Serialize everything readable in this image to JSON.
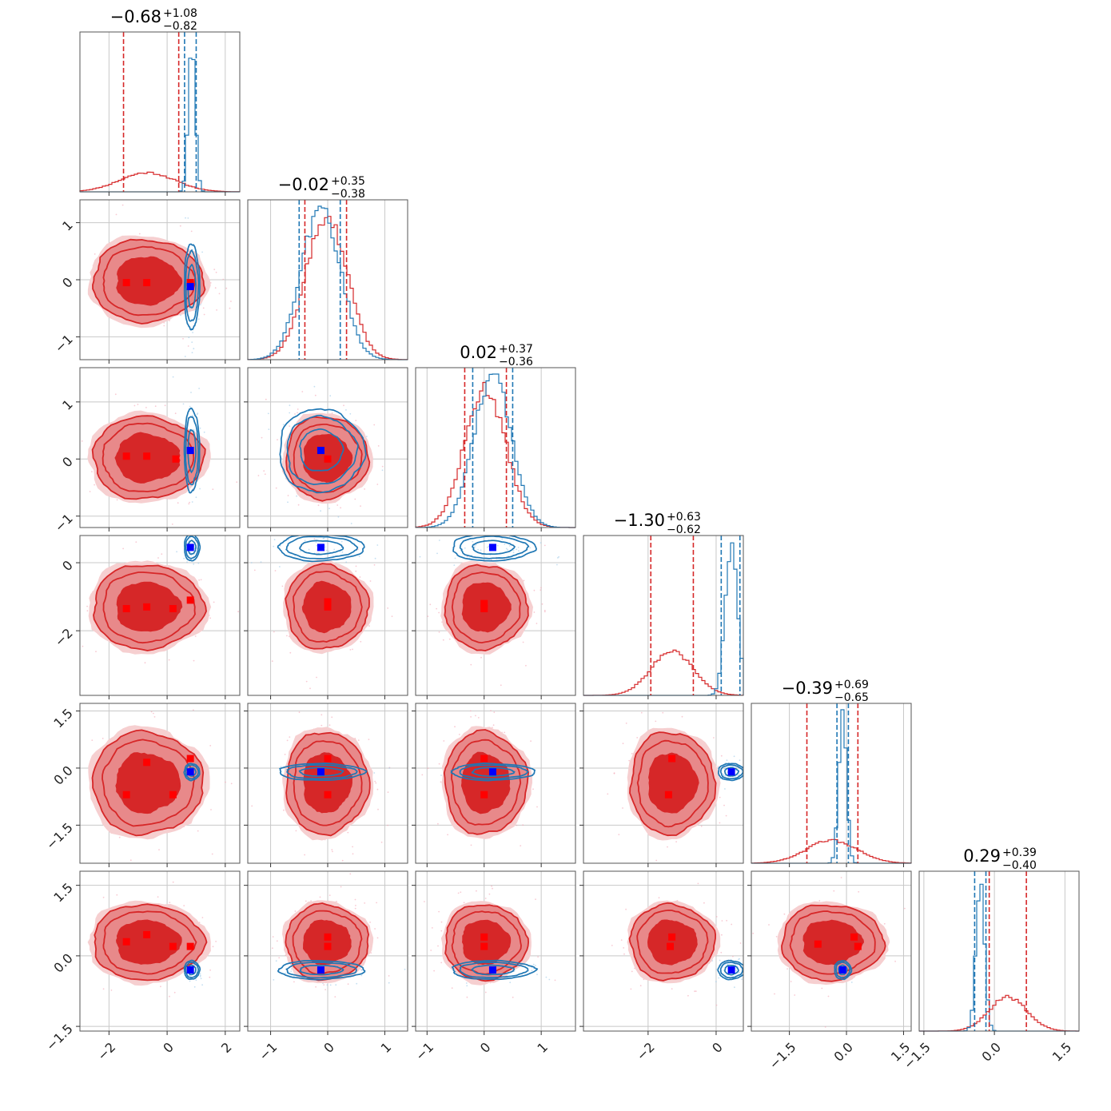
{
  "chart_data": {
    "type": "corner",
    "grid": true,
    "colors": {
      "red": "#d62728",
      "red_mid": "#e8898a",
      "red_light": "#f6cfd0",
      "blue": "#1f77b4",
      "marker_blue": "#0000ff",
      "marker_red": "#ff0000"
    },
    "params": [
      {
        "title": {
          "main": "−0.68",
          "sup": "+1.08",
          "sub": "−0.82"
        },
        "range": [
          -3.0,
          2.5
        ],
        "ticks": [
          -2,
          0,
          2
        ],
        "tick_labels": [
          "−2",
          "0",
          "2"
        ],
        "red": {
          "mean": -0.68,
          "std": 0.95,
          "q": [
            -1.5,
            0.4
          ]
        },
        "blue": {
          "mean": 0.85,
          "std": 0.12,
          "q": [
            0.6,
            1.0
          ]
        }
      },
      {
        "title": {
          "main": "−0.02",
          "sup": "+0.35",
          "sub": "−0.38"
        },
        "range": [
          -1.4,
          1.4
        ],
        "ticks": [
          -1,
          0,
          1
        ],
        "tick_labels": [
          "−1",
          "0",
          "1"
        ],
        "red": {
          "mean": -0.02,
          "std": 0.36,
          "q": [
            -0.4,
            0.33
          ]
        },
        "blue": {
          "mean": -0.12,
          "std": 0.34,
          "q": [
            -0.5,
            0.22
          ]
        }
      },
      {
        "title": {
          "main": "0.02",
          "sup": "+0.37",
          "sub": "−0.36"
        },
        "range": [
          -1.2,
          1.6
        ],
        "ticks": [
          -1,
          0,
          1
        ],
        "tick_labels": [
          "−1",
          "0",
          "1"
        ],
        "red": {
          "mean": 0.02,
          "std": 0.36,
          "q": [
            -0.34,
            0.39
          ]
        },
        "blue": {
          "mean": 0.15,
          "std": 0.33,
          "q": [
            -0.2,
            0.5
          ]
        }
      },
      {
        "title": {
          "main": "−1.30",
          "sup": "+0.63",
          "sub": "−0.62"
        },
        "range": [
          -3.9,
          0.8
        ],
        "ticks": [
          -2,
          0
        ],
        "tick_labels": [
          "−2",
          "0"
        ],
        "red": {
          "mean": -1.3,
          "std": 0.62,
          "q": [
            -1.92,
            -0.67
          ]
        },
        "blue": {
          "mean": 0.45,
          "std": 0.18,
          "q": [
            0.15,
            0.7
          ]
        }
      },
      {
        "title": {
          "main": "−0.39",
          "sup": "+0.69",
          "sub": "−0.65"
        },
        "range": [
          -2.5,
          1.7
        ],
        "ticks": [
          -1.5,
          0.0,
          1.5
        ],
        "tick_labels": [
          "−1.5",
          "0.0",
          "1.5"
        ],
        "red": {
          "mean": -0.39,
          "std": 0.67,
          "q": [
            -1.04,
            0.3
          ]
        },
        "blue": {
          "mean": -0.1,
          "std": 0.1,
          "q": [
            -0.25,
            0.05
          ]
        }
      },
      {
        "title": {
          "main": "0.29",
          "sup": "+0.39",
          "sub": "−0.40"
        },
        "range": [
          -1.6,
          1.8
        ],
        "ticks": [
          -1.5,
          0.0,
          1.5
        ],
        "tick_labels": [
          "−1.5",
          "0.0",
          "1.5"
        ],
        "red": {
          "mean": 0.29,
          "std": 0.4,
          "q": [
            -0.11,
            0.68
          ]
        },
        "blue": {
          "mean": -0.3,
          "std": 0.09,
          "q": [
            -0.42,
            -0.18
          ]
        }
      }
    ],
    "red_square_markers": [
      {
        "row": 1,
        "col": 0,
        "points": [
          [
            -1.4,
            -0.05
          ],
          [
            -0.7,
            -0.05
          ],
          [
            0.8,
            -0.05
          ]
        ]
      },
      {
        "row": 2,
        "col": 0,
        "points": [
          [
            -1.4,
            0.05
          ],
          [
            -0.7,
            0.05
          ],
          [
            0.3,
            0.0
          ]
        ]
      },
      {
        "row": 2,
        "col": 1,
        "points": [
          [
            0.0,
            0.0
          ]
        ]
      },
      {
        "row": 3,
        "col": 0,
        "points": [
          [
            -1.4,
            -1.35
          ],
          [
            -0.7,
            -1.3
          ],
          [
            0.2,
            -1.35
          ],
          [
            0.8,
            -1.1
          ]
        ]
      },
      {
        "row": 3,
        "col": 1,
        "points": [
          [
            0.0,
            -1.15
          ],
          [
            0.0,
            -1.3
          ]
        ]
      },
      {
        "row": 3,
        "col": 2,
        "points": [
          [
            0.0,
            -1.2
          ],
          [
            0.0,
            -1.35
          ]
        ]
      },
      {
        "row": 4,
        "col": 0,
        "points": [
          [
            -1.4,
            -0.7
          ],
          [
            -0.7,
            0.15
          ],
          [
            0.2,
            -0.7
          ],
          [
            0.8,
            0.25
          ]
        ]
      },
      {
        "row": 4,
        "col": 1,
        "points": [
          [
            0.0,
            0.25
          ],
          [
            0.0,
            -0.7
          ]
        ]
      },
      {
        "row": 4,
        "col": 2,
        "points": [
          [
            0.0,
            0.25
          ],
          [
            0.0,
            -0.7
          ]
        ]
      },
      {
        "row": 4,
        "col": 3,
        "points": [
          [
            -1.3,
            0.25
          ],
          [
            -1.4,
            -0.7
          ]
        ]
      },
      {
        "row": 5,
        "col": 0,
        "points": [
          [
            -1.4,
            0.3
          ],
          [
            -0.7,
            0.45
          ],
          [
            0.2,
            0.2
          ],
          [
            0.8,
            0.2
          ]
        ]
      },
      {
        "row": 5,
        "col": 1,
        "points": [
          [
            0.0,
            0.4
          ],
          [
            0.0,
            0.2
          ]
        ]
      },
      {
        "row": 5,
        "col": 2,
        "points": [
          [
            0.0,
            0.4
          ],
          [
            0.0,
            0.2
          ]
        ]
      },
      {
        "row": 5,
        "col": 3,
        "points": [
          [
            -1.3,
            0.4
          ],
          [
            -1.35,
            0.2
          ]
        ]
      },
      {
        "row": 5,
        "col": 4,
        "points": [
          [
            -0.75,
            0.25
          ],
          [
            0.2,
            0.4
          ],
          [
            0.3,
            0.2
          ]
        ]
      }
    ],
    "blue_square_markers": [
      {
        "row": 1,
        "col": 0,
        "point": [
          0.8,
          -0.12
        ]
      },
      {
        "row": 2,
        "col": 0,
        "point": [
          0.8,
          0.15
        ]
      },
      {
        "row": 2,
        "col": 1,
        "point": [
          -0.12,
          0.15
        ]
      },
      {
        "row": 3,
        "col": 0,
        "point": [
          0.8,
          0.45
        ]
      },
      {
        "row": 3,
        "col": 1,
        "point": [
          -0.12,
          0.45
        ]
      },
      {
        "row": 3,
        "col": 2,
        "point": [
          0.15,
          0.45
        ]
      },
      {
        "row": 4,
        "col": 0,
        "point": [
          0.8,
          -0.1
        ]
      },
      {
        "row": 4,
        "col": 1,
        "point": [
          -0.12,
          -0.1
        ]
      },
      {
        "row": 4,
        "col": 2,
        "point": [
          0.15,
          -0.1
        ]
      },
      {
        "row": 4,
        "col": 3,
        "point": [
          0.45,
          -0.1
        ]
      },
      {
        "row": 5,
        "col": 0,
        "point": [
          0.8,
          -0.3
        ]
      },
      {
        "row": 5,
        "col": 1,
        "point": [
          -0.12,
          -0.3
        ]
      },
      {
        "row": 5,
        "col": 2,
        "point": [
          0.15,
          -0.3
        ]
      },
      {
        "row": 5,
        "col": 3,
        "point": [
          0.45,
          -0.3
        ]
      },
      {
        "row": 5,
        "col": 4,
        "point": [
          -0.1,
          -0.3
        ]
      }
    ]
  }
}
